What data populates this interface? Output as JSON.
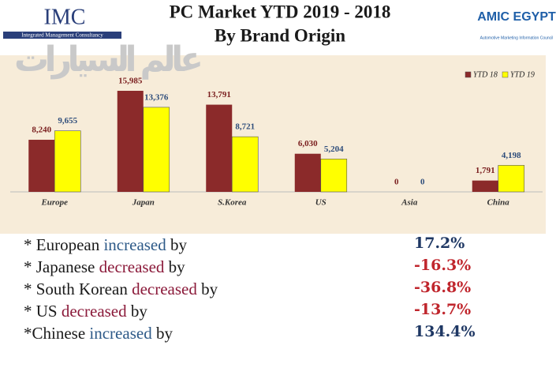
{
  "header": {
    "left_logo": "IMC",
    "left_logo_caption": "Integrated Management Consultancy",
    "right_logo": "AMIC EGYPT",
    "right_logo_caption": "Automotive Marketing Information Council",
    "watermark": "عالم السيارات"
  },
  "chart_data": {
    "type": "bar",
    "title": "PC Market YTD 2019 - 2018",
    "subtitle": "By Brand Origin",
    "categories": [
      "Europe",
      "Japan",
      "S.Korea",
      "US",
      "Asia",
      "China"
    ],
    "series": [
      {
        "name": "YTD 18",
        "color": "#8b2a2a",
        "label_color": "#7b2020",
        "values": [
          8240,
          15985,
          13791,
          6030,
          0,
          1791
        ],
        "value_labels": [
          "8,240",
          "15,985",
          "13,791",
          "6,030",
          "0",
          "1,791"
        ]
      },
      {
        "name": "YTD 19",
        "color": "#ffff00",
        "label_color": "#2e4d7b",
        "values": [
          9655,
          13376,
          8721,
          5204,
          0,
          4198
        ],
        "value_labels": [
          "9,655",
          "13,376",
          "8,721",
          "5,204",
          "0",
          "4,198"
        ]
      }
    ],
    "legend": "top-right",
    "grid": false
  },
  "notes": [
    {
      "label": "* European",
      "change": "increased",
      "by": "by",
      "value": "17.2%"
    },
    {
      "label": "* Japanese",
      "change": "decreased",
      "by": "by",
      "value": "-16.3%"
    },
    {
      "label": "* South Korean",
      "change": "decreased",
      "by": "by",
      "value": "-36.8%"
    },
    {
      "label": "* US",
      "change": "decreased",
      "by": "by",
      "value": "-13.7%"
    },
    {
      "label": "*Chinese",
      "change": "increased",
      "by": "by",
      "value": "134.4%"
    }
  ]
}
